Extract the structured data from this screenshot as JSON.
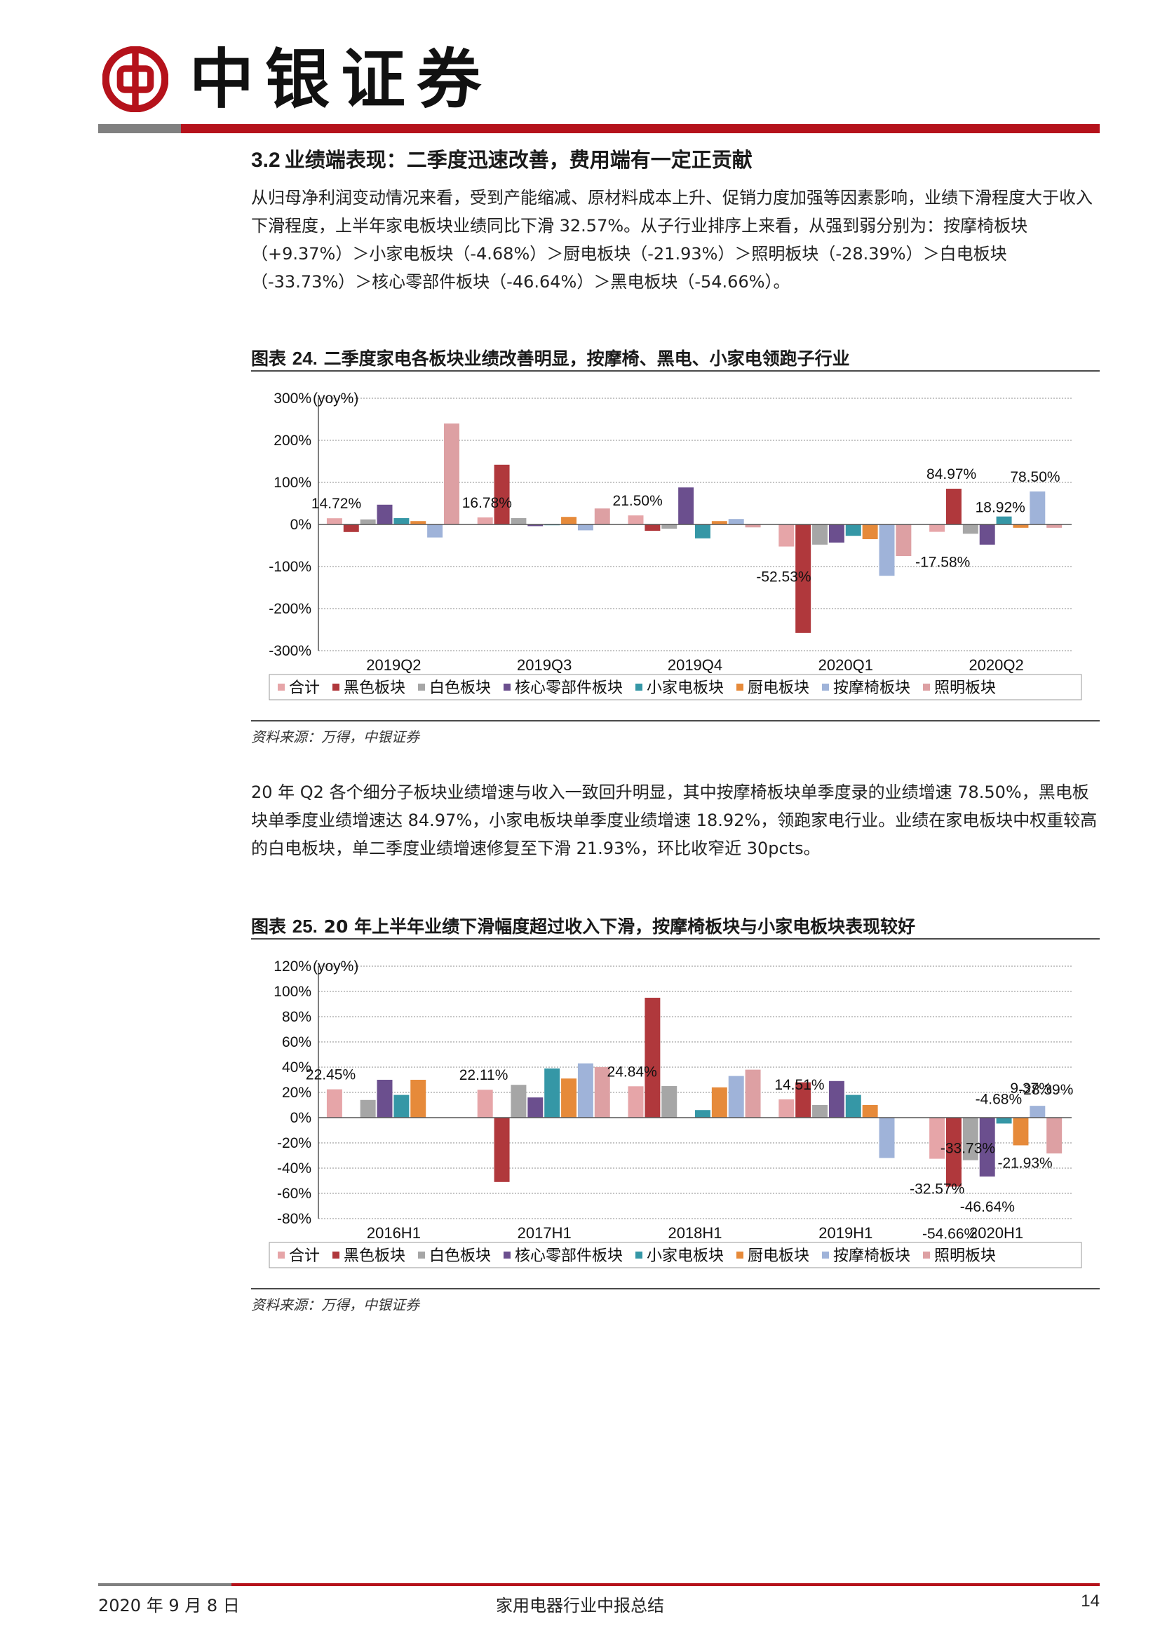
{
  "header": {
    "brand_name": "中银证券",
    "brand_color": "#b5121b"
  },
  "section": {
    "number": "3.2",
    "title": "业绩端表现：二季度迅速改善，费用端有一定正贡献",
    "paragraph1": "从归母净利润变动情况来看，受到产能缩减、原材料成本上升、促销力度加强等因素影响，业绩下滑程度大于收入下滑程度，上半年家电板块业绩同比下滑 32.57%。从子行业排序上来看，从强到弱分别为：按摩椅板块（+9.37%）＞小家电板块（-4.68%）＞厨电板块（-21.93%）＞照明板块（-28.39%）＞白电板块（-33.73%）＞核心零部件板块（-46.64%）＞黑电板块（-54.66%）。",
    "paragraph2": "20 年 Q2 各个细分子板块业绩增速与收入一致回升明显，其中按摩椅板块单季度录的业绩增速 78.50%，黑电板块单季度业绩增速达 84.97%，小家电板块单季度业绩增速 18.92%，领跑家电行业。业绩在家电板块中权重较高的白电板块，单二季度业绩增速修复至下滑 21.93%，环比收窄近 30pcts。"
  },
  "figure1": {
    "label": "图表",
    "number": "24.",
    "title": "二季度家电各板块业绩改善明显，按摩椅、黑电、小家电领跑子行业",
    "source": "资料来源：万得，中银证券"
  },
  "figure2": {
    "label": "图表",
    "number": "25.",
    "title": "20 年上半年业绩下滑幅度超过收入下滑，按摩椅板块与小家电板块表现较好",
    "source": "资料来源：万得，中银证券"
  },
  "chart_data": [
    {
      "type": "bar",
      "ylabel": "(yoy%)",
      "ylim": [
        -300,
        300
      ],
      "yticks": [
        "300%",
        "200%",
        "100%",
        "0%",
        "-100%",
        "-200%",
        "-300%"
      ],
      "categories": [
        "2019Q2",
        "2019Q3",
        "2019Q4",
        "2020Q1",
        "2020Q2"
      ],
      "legend_position": "bottom",
      "grid": "horizontal dotted",
      "series": [
        {
          "name": "合计",
          "color": "#e6a5a8",
          "values": [
            14.72,
            16.78,
            21.5,
            -52.53,
            -17.58
          ]
        },
        {
          "name": "黑色板块",
          "color": "#b0383c",
          "values": [
            -18,
            142,
            -15,
            -258,
            84.97
          ]
        },
        {
          "name": "白色板块",
          "color": "#a6a6a6",
          "values": [
            12,
            15,
            -10,
            -48,
            -22
          ]
        },
        {
          "name": "核心零部件板块",
          "color": "#6b4f8e",
          "values": [
            47,
            -4,
            88,
            -43,
            -48
          ]
        },
        {
          "name": "小家电板块",
          "color": "#3597a6",
          "values": [
            15,
            -2,
            -33,
            -27,
            18.92
          ]
        },
        {
          "name": "厨电板块",
          "color": "#e68a3a",
          "values": [
            8,
            18,
            8,
            -35,
            -8
          ]
        },
        {
          "name": "按摩椅板块",
          "color": "#9fb3d9",
          "values": [
            -31,
            -14,
            13,
            -122,
            78.5
          ]
        },
        {
          "name": "照明板块",
          "color": "#dda0a3",
          "values": [
            240,
            38,
            -7,
            -75,
            -8
          ]
        }
      ],
      "data_labels": [
        "14.72%",
        "16.78%",
        "21.50%",
        "-52.53%",
        "-17.58%",
        "84.97%",
        "18.92%",
        "78.50%"
      ]
    },
    {
      "type": "bar",
      "ylabel": "(yoy%)",
      "ylim": [
        -80,
        120
      ],
      "yticks": [
        "120%",
        "100%",
        "80%",
        "60%",
        "40%",
        "20%",
        "0%",
        "-20%",
        "-40%",
        "-60%",
        "-80%"
      ],
      "categories": [
        "2016H1",
        "2017H1",
        "2018H1",
        "2019H1",
        "2020H1"
      ],
      "legend_position": "bottom",
      "grid": "horizontal dotted",
      "series": [
        {
          "name": "合计",
          "color": "#e6a5a8",
          "values": [
            22.45,
            22.11,
            24.84,
            14.51,
            -32.57
          ]
        },
        {
          "name": "黑色板块",
          "color": "#b0383c",
          "values": [
            0,
            -51,
            95,
            28,
            -54.66
          ]
        },
        {
          "name": "白色板块",
          "color": "#a6a6a6",
          "values": [
            14,
            26,
            25,
            10,
            -33.73
          ]
        },
        {
          "name": "核心零部件板块",
          "color": "#6b4f8e",
          "values": [
            30,
            16,
            0,
            29,
            -46.64
          ]
        },
        {
          "name": "小家电板块",
          "color": "#3597a6",
          "values": [
            18,
            39,
            6,
            18,
            -4.68
          ]
        },
        {
          "name": "厨电板块",
          "color": "#e68a3a",
          "values": [
            30,
            31,
            24,
            10,
            -21.93
          ]
        },
        {
          "name": "按摩椅板块",
          "color": "#9fb3d9",
          "values": [
            0,
            43,
            33,
            -32,
            9.37
          ]
        },
        {
          "name": "照明板块",
          "color": "#dda0a3",
          "values": [
            0,
            40,
            38,
            0,
            -28.39
          ]
        }
      ],
      "data_labels": [
        "22.45%",
        "22.11%",
        "24.84%",
        "14.51%",
        "-32.57%",
        "-54.66%",
        "-33.73%",
        "-46.64%",
        "-4.68%",
        "-21.93%",
        "9.37%",
        "-28.39%"
      ]
    }
  ],
  "footer": {
    "date": "2020 年 9 月 8 日",
    "doc_title": "家用电器行业中报总结",
    "page": "14"
  }
}
